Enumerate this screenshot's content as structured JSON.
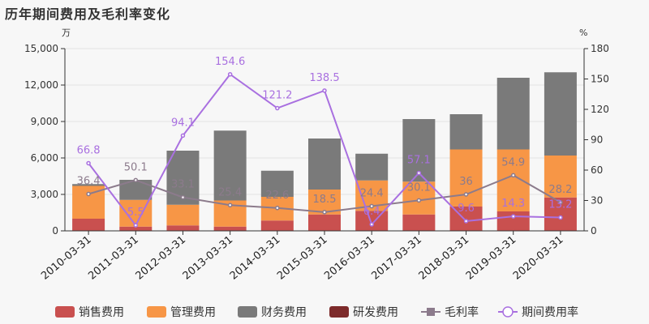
{
  "title": "历年期间费用及毛利率变化",
  "chart_data": {
    "type": "bar",
    "stacked": true,
    "title": "历年期间费用及毛利率变化",
    "left_unit": "万",
    "right_unit": "%",
    "categories": [
      "2010-03-31",
      "2011-03-31",
      "2012-03-31",
      "2013-03-31",
      "2014-03-31",
      "2015-03-31",
      "2016-03-31",
      "2017-03-31",
      "2018-03-31",
      "2019-03-31",
      "2020-03-31"
    ],
    "ylim_left": [
      0,
      15000
    ],
    "yticks_left": [
      "0",
      "3,000",
      "6,000",
      "9,000",
      "12,000",
      "15,000"
    ],
    "ylim_right": [
      0,
      180
    ],
    "yticks_right": [
      "0",
      "30",
      "60",
      "90",
      "120",
      "150",
      "180"
    ],
    "bar_series": [
      {
        "name": "销售费用",
        "color": "#c9504f",
        "values": [
          1000,
          350,
          450,
          350,
          850,
          1350,
          1650,
          1350,
          2000,
          1600,
          2750
        ]
      },
      {
        "name": "管理费用",
        "color": "#f79646",
        "values": [
          2700,
          2200,
          1700,
          2150,
          1950,
          2050,
          2500,
          2700,
          4700,
          5100,
          3450
        ]
      },
      {
        "name": "财务费用",
        "color": "#7a7a7a",
        "values": [
          150,
          1650,
          4450,
          5750,
          2150,
          4200,
          2200,
          5150,
          2900,
          5900,
          6850
        ]
      },
      {
        "name": "研发费用",
        "color": "#7d2b2b",
        "values": [
          0,
          0,
          0,
          0,
          0,
          0,
          0,
          0,
          0,
          0,
          0
        ]
      }
    ],
    "line_series": [
      {
        "name": "毛利率",
        "color": "#8c7b8c",
        "values": [
          36.4,
          50.1,
          33.1,
          25.4,
          22.6,
          18.5,
          24.4,
          30.1,
          36,
          54.9,
          28.2
        ],
        "labels": [
          "36.4",
          "50.1",
          "33.1",
          "25.4",
          "22.6",
          "18.5",
          "24.4",
          "30.1",
          "36",
          "54.9",
          "28.2"
        ]
      },
      {
        "name": "期间费用率",
        "color": "#a970e0",
        "values": [
          66.8,
          5.5,
          94.1,
          154.6,
          121.2,
          138.5,
          6.4,
          57.1,
          9.6,
          14.3,
          13.2
        ],
        "labels": [
          "66.8",
          "5.5",
          "94.1",
          "154.6",
          "121.2",
          "138.5",
          "6.4",
          "57.1",
          "9.6",
          "14.3",
          "13.2"
        ]
      }
    ],
    "legend_position": "bottom"
  }
}
